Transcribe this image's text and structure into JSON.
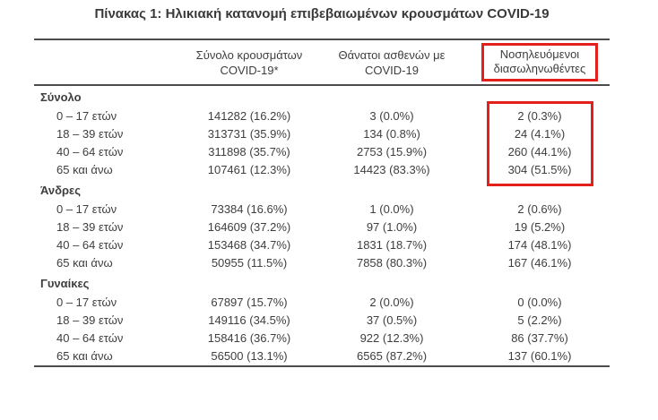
{
  "page": {
    "title": "Πίνακας 1: Ηλικιακή κατανομή επιβεβαιωμένων κρουσμάτων COVID-19"
  },
  "colors": {
    "highlight_red": "#e3201b",
    "text": "#3e3e3e",
    "rule": "#4c4c4c"
  },
  "table": {
    "col_headers": [
      {
        "line1": "Σύνολο κρουσμάτων",
        "line2": "COVID-19*"
      },
      {
        "line1": "Θάνατοι ασθενών με",
        "line2": "COVID-19"
      },
      {
        "line1": "Νοσηλευόμενοι",
        "line2": "διασωληνωθέντες",
        "highlighted": true
      }
    ],
    "sections": [
      {
        "label": "Σύνολο",
        "rows": [
          {
            "age": "0 – 17 ετών",
            "cases": "141282 (16.2%)",
            "deaths": "3 (0.0%)",
            "intubated": "2 (0.3%)"
          },
          {
            "age": "18 – 39 ετών",
            "cases": "313731 (35.9%)",
            "deaths": "134 (0.8%)",
            "intubated": "24 (4.1%)"
          },
          {
            "age": "40 – 64 ετών",
            "cases": "311898 (35.7%)",
            "deaths": "2753 (15.9%)",
            "intubated": "260 (44.1%)"
          },
          {
            "age": "65 και άνω",
            "cases": "107461 (12.3%)",
            "deaths": "14423 (83.3%)",
            "intubated": "304 (51.5%)"
          }
        ],
        "intubated_highlighted": true
      },
      {
        "label": "Άνδρες",
        "rows": [
          {
            "age": "0 – 17 ετών",
            "cases": "73384 (16.6%)",
            "deaths": "1 (0.0%)",
            "intubated": "2 (0.6%)"
          },
          {
            "age": "18 – 39 ετών",
            "cases": "164609 (37.2%)",
            "deaths": "97 (1.0%)",
            "intubated": "19 (5.2%)"
          },
          {
            "age": "40 – 64 ετών",
            "cases": "153468 (34.7%)",
            "deaths": "1831 (18.7%)",
            "intubated": "174 (48.1%)"
          },
          {
            "age": "65 και άνω",
            "cases": "50955 (11.5%)",
            "deaths": "7858 (80.3%)",
            "intubated": "167 (46.1%)"
          }
        ]
      },
      {
        "label": "Γυναίκες",
        "rows": [
          {
            "age": "0 – 17 ετών",
            "cases": "67897 (15.7%)",
            "deaths": "2 (0.0%)",
            "intubated": "0 (0.0%)"
          },
          {
            "age": "18 – 39 ετών",
            "cases": "149116 (34.5%)",
            "deaths": "37 (0.5%)",
            "intubated": "5 (2.2%)"
          },
          {
            "age": "40 – 64 ετών",
            "cases": "158416 (36.7%)",
            "deaths": "922 (12.3%)",
            "intubated": "86 (37.7%)"
          },
          {
            "age": "65 και άνω",
            "cases": "56500 (13.1%)",
            "deaths": "6565 (87.2%)",
            "intubated": "137 (60.1%)"
          }
        ]
      }
    ]
  }
}
